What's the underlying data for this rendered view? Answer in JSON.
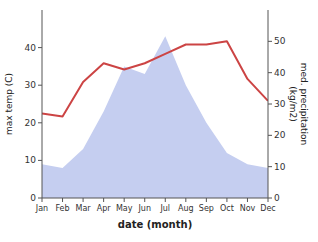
{
  "chart_data": {
    "type": "area",
    "categories": [
      "Jan",
      "Feb",
      "Mar",
      "Apr",
      "May",
      "Jun",
      "Jul",
      "Aug",
      "Sep",
      "Oct",
      "Nov",
      "Dec"
    ],
    "xlabel": "date (month)",
    "ylabel": "max temp (C)",
    "y2label": "med. precipitation\n(kg/m2)",
    "ylim": [
      0,
      50
    ],
    "yticks": [
      0,
      10,
      20,
      30,
      40
    ],
    "y2lim": [
      0,
      60
    ],
    "y2ticks": [
      0,
      10,
      20,
      30,
      40,
      50
    ],
    "series": [
      {
        "type": "area",
        "color": "#c5cef0",
        "values": [
          9,
          8,
          13,
          23,
          35,
          33,
          43,
          30,
          20,
          12,
          9,
          8
        ]
      },
      {
        "type": "line",
        "axis": "y2",
        "color": "#cc4444",
        "values": [
          27,
          26,
          37,
          43,
          41,
          43,
          46,
          49,
          49,
          50,
          38,
          31
        ]
      }
    ]
  }
}
